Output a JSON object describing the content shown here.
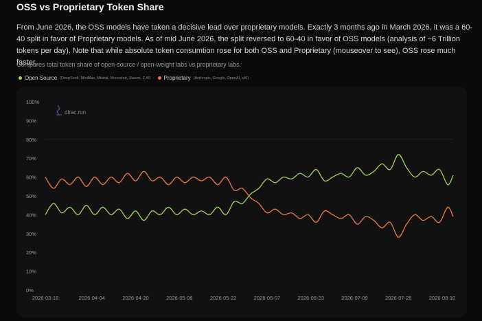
{
  "header": {
    "title": "OSS vs Proprietary Token Share",
    "description": "From June 2026, the OSS models have taken a decisive lead over proprietary models. Exactly 3 months ago in March 2026, it was a 60-40 split in favor of Proprietary models. As of mid June 2026, the split reversed to 60-40 in favor of OSS models (analysis of ~6 Trillion tokens per day). Note that while absolute token consumtion rose for both OSS and Proprietary (mouseover to see), OSS rose much faster.",
    "subtitle": "Compares total token share of open-source / open-weight labs vs proprietary labs."
  },
  "legend": {
    "items": [
      {
        "label": "Open Source",
        "note": "(DeepSeek, MiniMax, Mistral, Moonshot, Xiaomi, Z.AI)",
        "color": "#a3d35a"
      },
      {
        "label": "Proprietary",
        "note": "(Anthropic, Google, OpenAI, xAI)",
        "color": "#ee7a3f"
      }
    ]
  },
  "watermark": {
    "text": "dirac.run",
    "icon": "dirac-logo-icon"
  },
  "chart_data": {
    "type": "line",
    "x_ticks": [
      "2026-03-18",
      "2026-04-04",
      "2026-04-20",
      "2026-05-06",
      "2026-05-22",
      "2026-06-07",
      "2026-06-23",
      "2026-07-09",
      "2026-07-25",
      "2026-08-10"
    ],
    "x_range": [
      "2026-03-18",
      "2026-08-14"
    ],
    "y_ticks": [
      "0%",
      "10%",
      "20%",
      "30%",
      "40%",
      "50%",
      "60%",
      "70%",
      "80%",
      "90%",
      "100%"
    ],
    "ylim": [
      0,
      100
    ],
    "grid": true,
    "legend_position": "top-left",
    "series": [
      {
        "name": "Open Source",
        "color": "#a3d35a",
        "points": [
          [
            "2026-03-18",
            40
          ],
          [
            "2026-03-21",
            46
          ],
          [
            "2026-03-24",
            41
          ],
          [
            "2026-03-27",
            44
          ],
          [
            "2026-03-30",
            40
          ],
          [
            "2026-04-02",
            45
          ],
          [
            "2026-04-05",
            40
          ],
          [
            "2026-04-08",
            44
          ],
          [
            "2026-04-11",
            40
          ],
          [
            "2026-04-14",
            43
          ],
          [
            "2026-04-17",
            38
          ],
          [
            "2026-04-20",
            42
          ],
          [
            "2026-04-23",
            37
          ],
          [
            "2026-04-26",
            42
          ],
          [
            "2026-04-29",
            40
          ],
          [
            "2026-05-02",
            44
          ],
          [
            "2026-05-05",
            40
          ],
          [
            "2026-05-08",
            43
          ],
          [
            "2026-05-11",
            40
          ],
          [
            "2026-05-14",
            42
          ],
          [
            "2026-05-17",
            40
          ],
          [
            "2026-05-20",
            44
          ],
          [
            "2026-05-23",
            40
          ],
          [
            "2026-05-26",
            47
          ],
          [
            "2026-05-29",
            46
          ],
          [
            "2026-06-01",
            51
          ],
          [
            "2026-06-04",
            54
          ],
          [
            "2026-06-07",
            59
          ],
          [
            "2026-06-10",
            57
          ],
          [
            "2026-06-13",
            60
          ],
          [
            "2026-06-16",
            59
          ],
          [
            "2026-06-19",
            62
          ],
          [
            "2026-06-22",
            60
          ],
          [
            "2026-06-25",
            64
          ],
          [
            "2026-06-28",
            58
          ],
          [
            "2026-07-01",
            60
          ],
          [
            "2026-07-04",
            62
          ],
          [
            "2026-07-07",
            60
          ],
          [
            "2026-07-10",
            65
          ],
          [
            "2026-07-13",
            61
          ],
          [
            "2026-07-16",
            63
          ],
          [
            "2026-07-19",
            67
          ],
          [
            "2026-07-22",
            64
          ],
          [
            "2026-07-25",
            72
          ],
          [
            "2026-07-28",
            65
          ],
          [
            "2026-07-31",
            60
          ],
          [
            "2026-08-03",
            63
          ],
          [
            "2026-08-06",
            61
          ],
          [
            "2026-08-09",
            64
          ],
          [
            "2026-08-12",
            56
          ],
          [
            "2026-08-14",
            61
          ]
        ]
      },
      {
        "name": "Proprietary",
        "color": "#ee7a3f",
        "points": [
          [
            "2026-03-18",
            60
          ],
          [
            "2026-03-21",
            54
          ],
          [
            "2026-03-24",
            59
          ],
          [
            "2026-03-27",
            56
          ],
          [
            "2026-03-30",
            60
          ],
          [
            "2026-04-02",
            55
          ],
          [
            "2026-04-05",
            60
          ],
          [
            "2026-04-08",
            56
          ],
          [
            "2026-04-11",
            60
          ],
          [
            "2026-04-14",
            57
          ],
          [
            "2026-04-17",
            62
          ],
          [
            "2026-04-20",
            58
          ],
          [
            "2026-04-23",
            63
          ],
          [
            "2026-04-26",
            58
          ],
          [
            "2026-04-29",
            60
          ],
          [
            "2026-05-02",
            56
          ],
          [
            "2026-05-05",
            60
          ],
          [
            "2026-05-08",
            57
          ],
          [
            "2026-05-11",
            60
          ],
          [
            "2026-05-14",
            58
          ],
          [
            "2026-05-17",
            60
          ],
          [
            "2026-05-20",
            56
          ],
          [
            "2026-05-23",
            60
          ],
          [
            "2026-05-26",
            53
          ],
          [
            "2026-05-29",
            54
          ],
          [
            "2026-06-01",
            49
          ],
          [
            "2026-06-04",
            46
          ],
          [
            "2026-06-07",
            41
          ],
          [
            "2026-06-10",
            43
          ],
          [
            "2026-06-13",
            40
          ],
          [
            "2026-06-16",
            41
          ],
          [
            "2026-06-19",
            38
          ],
          [
            "2026-06-22",
            40
          ],
          [
            "2026-06-25",
            36
          ],
          [
            "2026-06-28",
            42
          ],
          [
            "2026-07-01",
            40
          ],
          [
            "2026-07-04",
            38
          ],
          [
            "2026-07-07",
            40
          ],
          [
            "2026-07-10",
            35
          ],
          [
            "2026-07-13",
            39
          ],
          [
            "2026-07-16",
            37
          ],
          [
            "2026-07-19",
            33
          ],
          [
            "2026-07-22",
            36
          ],
          [
            "2026-07-25",
            28
          ],
          [
            "2026-07-28",
            35
          ],
          [
            "2026-07-31",
            40
          ],
          [
            "2026-08-03",
            37
          ],
          [
            "2026-08-06",
            39
          ],
          [
            "2026-08-09",
            36
          ],
          [
            "2026-08-12",
            44
          ],
          [
            "2026-08-14",
            39
          ]
        ]
      }
    ]
  }
}
